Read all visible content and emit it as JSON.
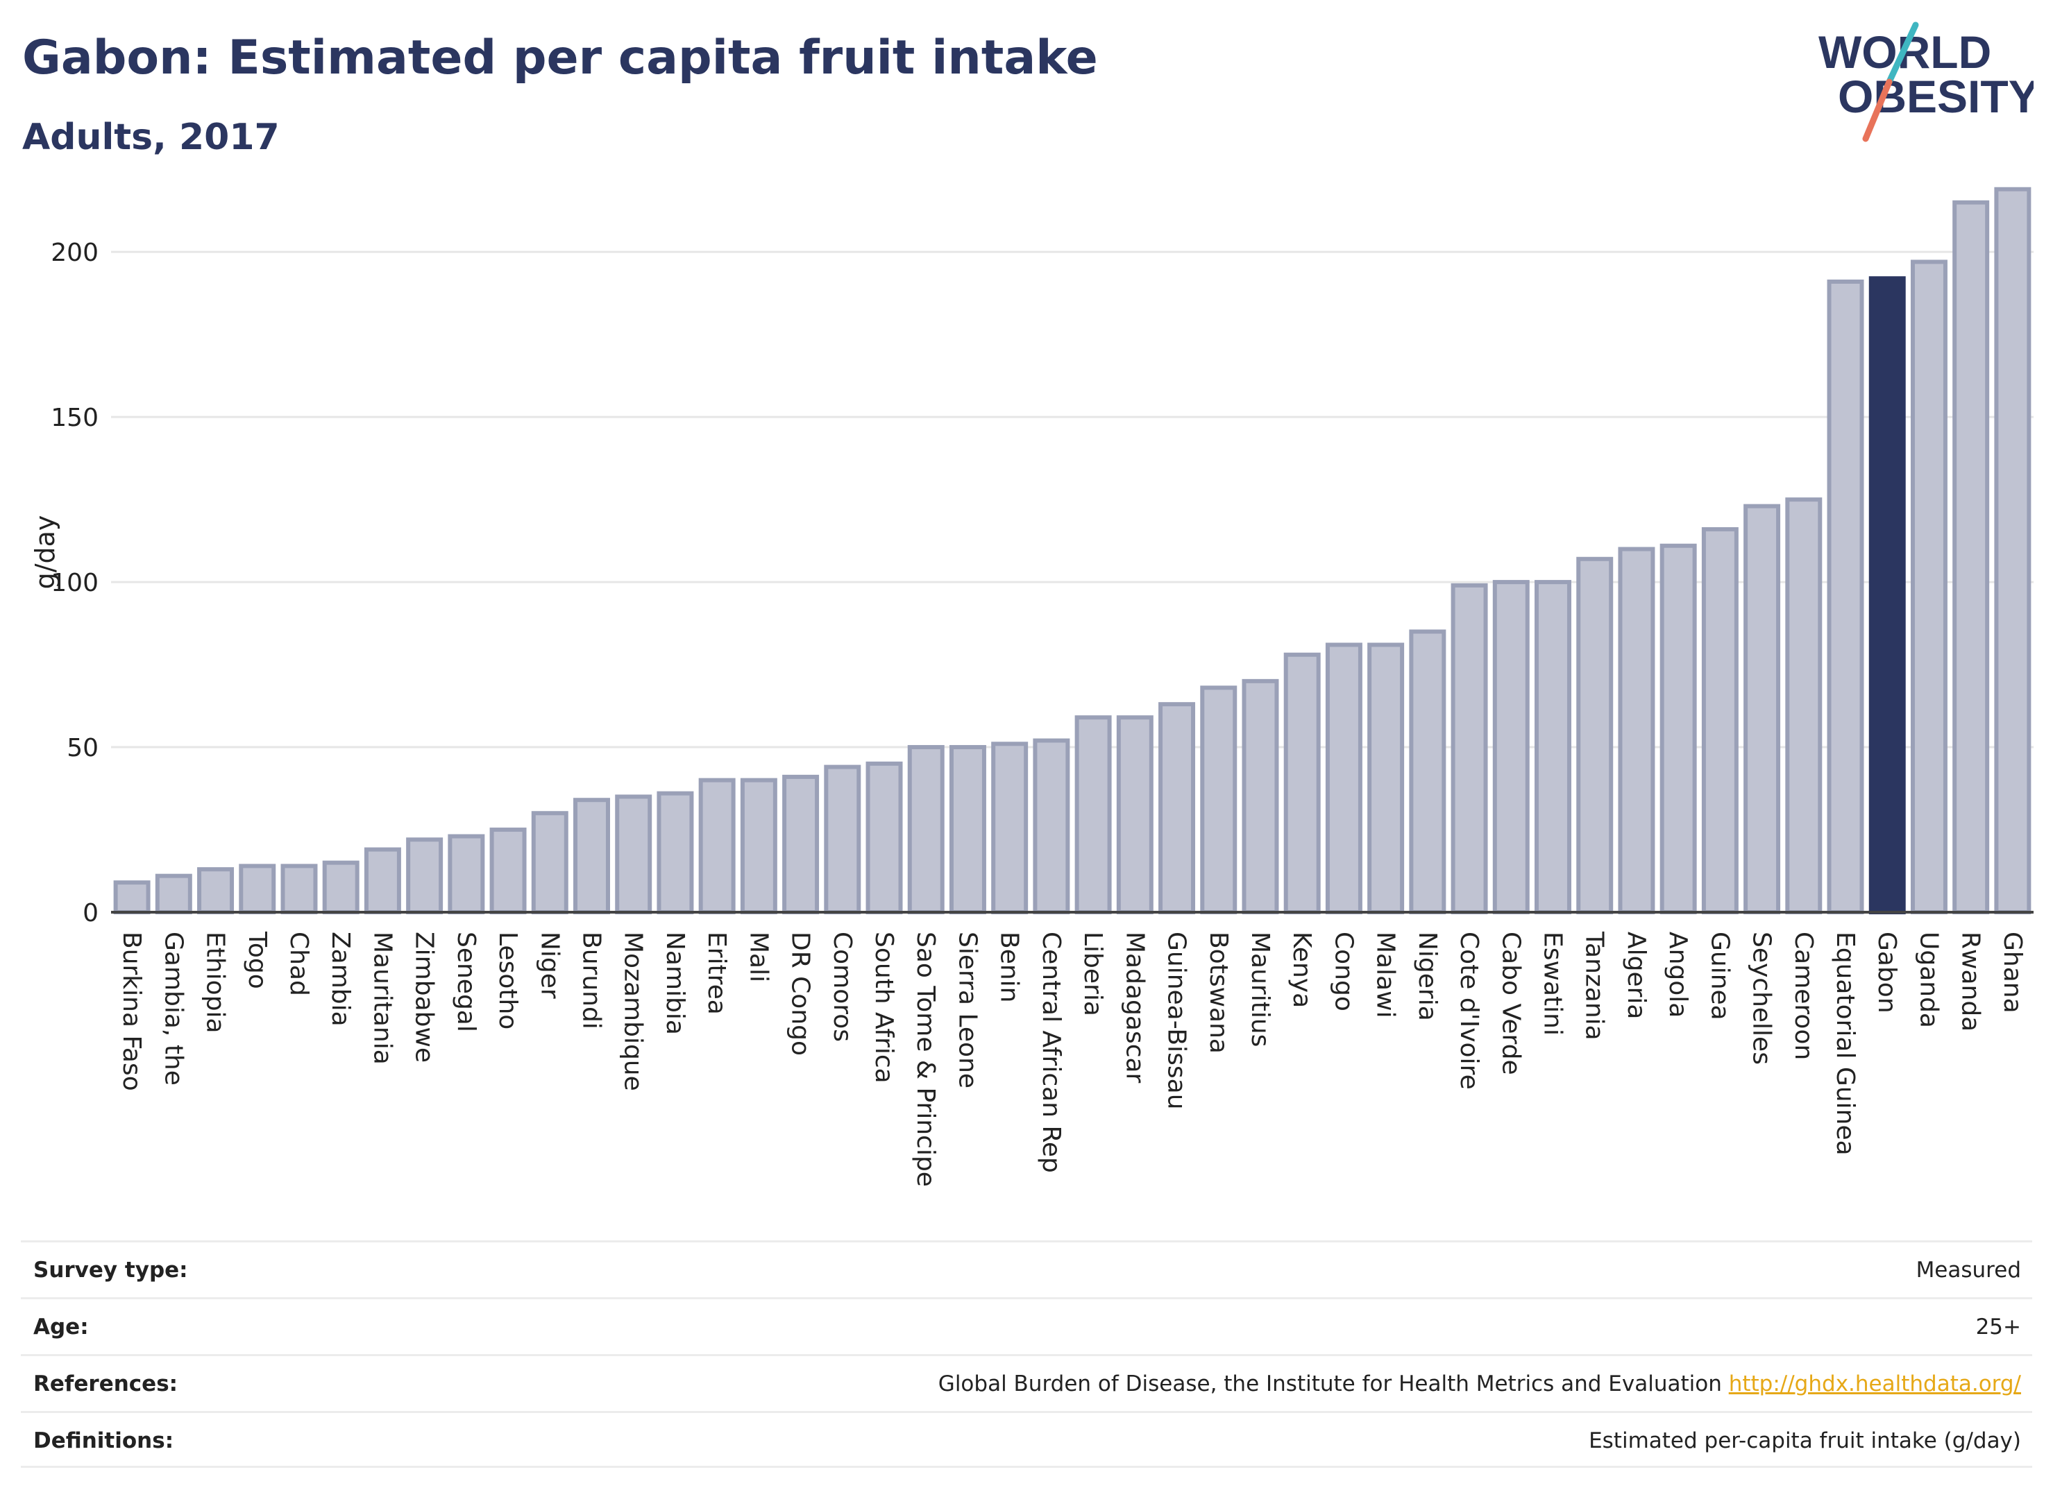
{
  "header": {
    "title": "Gabon: Estimated per capita fruit intake",
    "subtitle": "Adults, 2017",
    "logo_line1": "WORLD",
    "logo_line2": "OBESITY"
  },
  "colors": {
    "bar": "#c0c3d2",
    "bar_border": "#9aa0b7",
    "highlight": "#2b3660",
    "grid": "#e6e6e6",
    "text": "#222222",
    "title": "#2b3660",
    "logo_teal": "#3fb6c1",
    "logo_coral": "#e8735a"
  },
  "chart_data": {
    "type": "bar",
    "ylabel": "g/day",
    "ylim": [
      0,
      220
    ],
    "yticks": [
      0,
      50,
      100,
      150,
      200
    ],
    "grid": true,
    "highlight": "Gabon",
    "categories": [
      "Burkina Faso",
      "Gambia, the",
      "Ethiopia",
      "Togo",
      "Chad",
      "Zambia",
      "Mauritania",
      "Zimbabwe",
      "Senegal",
      "Lesotho",
      "Niger",
      "Burundi",
      "Mozambique",
      "Namibia",
      "Eritrea",
      "Mali",
      "DR Congo",
      "Comoros",
      "South Africa",
      "Sao Tome & Principe",
      "Sierra Leone",
      "Benin",
      "Central African Rep",
      "Liberia",
      "Madagascar",
      "Guinea-Bissau",
      "Botswana",
      "Mauritius",
      "Kenya",
      "Congo",
      "Malawi",
      "Nigeria",
      "Cote d'Ivoire",
      "Cabo Verde",
      "Eswatini",
      "Tanzania",
      "Algeria",
      "Angola",
      "Guinea",
      "Seychelles",
      "Cameroon",
      "Equatorial Guinea",
      "Gabon",
      "Uganda",
      "Rwanda",
      "Ghana"
    ],
    "values": [
      9,
      11,
      13,
      14,
      14,
      15,
      19,
      22,
      23,
      25,
      30,
      34,
      35,
      36,
      40,
      40,
      41,
      44,
      45,
      50,
      50,
      51,
      52,
      59,
      59,
      63,
      68,
      70,
      78,
      81,
      81,
      85,
      99,
      100,
      100,
      107,
      110,
      111,
      116,
      123,
      125,
      191,
      192,
      197,
      215,
      219
    ]
  },
  "meta": {
    "survey_type_label": "Survey type:",
    "survey_type_value": "Measured",
    "age_label": "Age:",
    "age_value": "25+",
    "references_label": "References:",
    "references_text": "Global Burden of Disease, the Institute for Health Metrics and Evaluation",
    "references_link": "http://ghdx.healthdata.org/",
    "definitions_label": "Definitions:",
    "definitions_value": "Estimated per-capita fruit intake (g/day)"
  }
}
